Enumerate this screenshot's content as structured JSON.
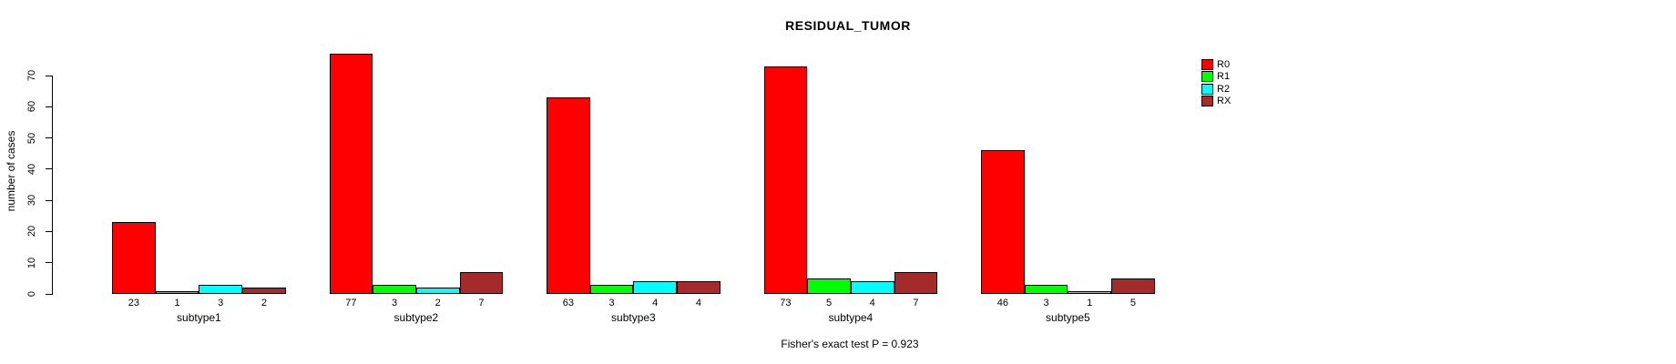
{
  "title": "RESIDUAL_TUMOR",
  "chart_data": {
    "type": "bar",
    "title": "RESIDUAL_TUMOR",
    "xlabel": "",
    "ylabel": "number of cases",
    "ylim": [
      0,
      77
    ],
    "yticks": [
      0,
      10,
      20,
      30,
      40,
      50,
      60,
      70
    ],
    "grid": false,
    "legend_position": "top-right-outside",
    "categories": [
      "subtype1",
      "subtype2",
      "subtype3",
      "subtype4",
      "subtype5"
    ],
    "series": [
      {
        "name": "R0",
        "color": "#FF0000",
        "values": [
          23,
          77,
          63,
          73,
          46
        ]
      },
      {
        "name": "R1",
        "color": "#00FF00",
        "values": [
          1,
          3,
          3,
          5,
          3
        ]
      },
      {
        "name": "R2",
        "color": "#00FFFF",
        "values": [
          3,
          2,
          4,
          4,
          1
        ]
      },
      {
        "name": "RX",
        "color": "#A52A2A",
        "values": [
          2,
          7,
          4,
          7,
          5
        ]
      }
    ],
    "bar_value_labels": [
      [
        23,
        1,
        3,
        2
      ],
      [
        77,
        3,
        2,
        7
      ],
      [
        63,
        3,
        4,
        4
      ],
      [
        73,
        5,
        4,
        7
      ],
      [
        46,
        3,
        1,
        5
      ]
    ],
    "annotation": "Fisher's exact test P = 0.923"
  },
  "colors": {
    "background": "#FFFFFF",
    "axis": "#000000",
    "bar_border": "#000000",
    "r0": "#FF0000",
    "r1": "#00FF00",
    "r2": "#00FFFF",
    "rx": "#A52A2A"
  }
}
